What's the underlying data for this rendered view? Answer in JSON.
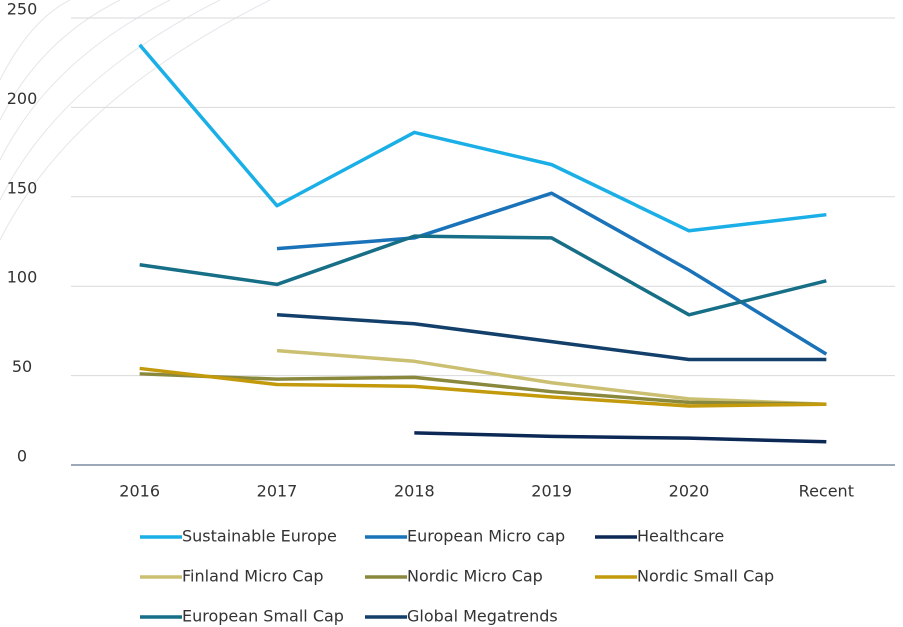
{
  "chart_data": {
    "type": "line",
    "categories": [
      "2016",
      "2017",
      "2018",
      "2019",
      "2020",
      "Recent"
    ],
    "series": [
      {
        "name": "Sustainable Europe",
        "color": "#1aafe6",
        "values": [
          235,
          145,
          186,
          168,
          131,
          140
        ]
      },
      {
        "name": "European Micro cap",
        "color": "#1a73b8",
        "values": [
          null,
          121,
          127,
          152,
          109,
          62
        ]
      },
      {
        "name": "Healthcare",
        "color": "#0c2855",
        "values": [
          null,
          null,
          18,
          16,
          15,
          13
        ]
      },
      {
        "name": "Finland Micro Cap",
        "color": "#cbbf72",
        "values": [
          null,
          64,
          58,
          46,
          37,
          34
        ]
      },
      {
        "name": "Nordic Micro Cap",
        "color": "#8a883d",
        "values": [
          51,
          48,
          49,
          41,
          35,
          34
        ]
      },
      {
        "name": "Nordic Small Cap",
        "color": "#c39a0c",
        "values": [
          54,
          45,
          44,
          38,
          33,
          34
        ]
      },
      {
        "name": "European Small Cap",
        "color": "#166f87",
        "values": [
          112,
          101,
          128,
          127,
          84,
          103
        ]
      },
      {
        "name": "Global Megatrends",
        "color": "#133f6b",
        "values": [
          null,
          84,
          79,
          69,
          59,
          59
        ]
      }
    ],
    "ylim": [
      0,
      250
    ],
    "yticks": [
      0,
      50,
      100,
      150,
      200,
      250
    ],
    "grid": true
  }
}
